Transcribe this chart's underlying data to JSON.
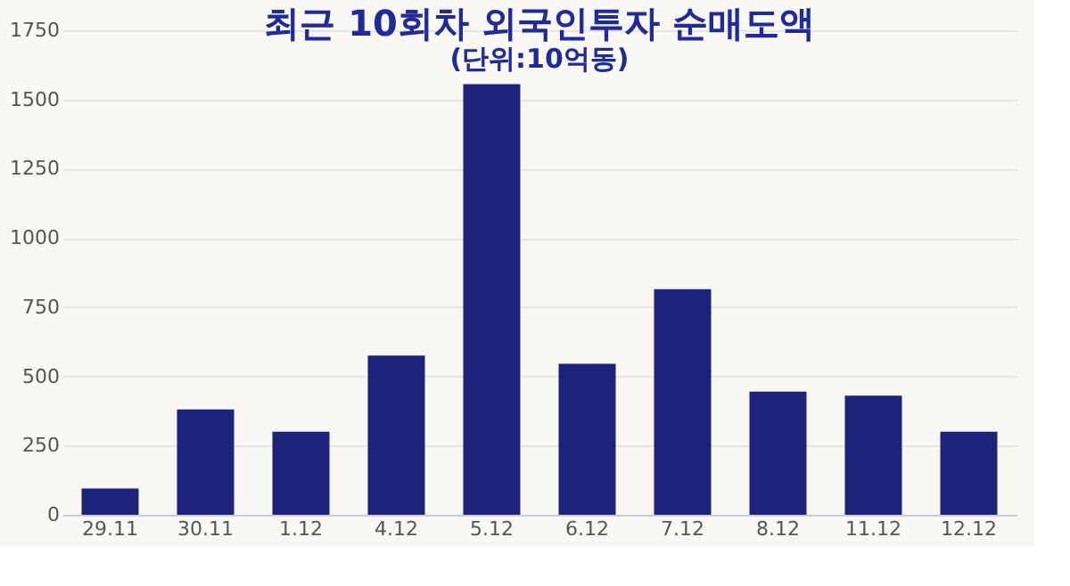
{
  "chart_data": {
    "type": "bar",
    "title": "최근 10회차 외국인투자 순매도액",
    "subtitle": "(단위:10억동)",
    "categories": [
      "29.11",
      "30.11",
      "1.12",
      "4.12",
      "5.12",
      "6.12",
      "7.12",
      "8.12",
      "11.12",
      "12.12"
    ],
    "values": [
      95,
      380,
      300,
      575,
      1555,
      545,
      815,
      445,
      430,
      300
    ],
    "color": "#1b237a",
    "ylim": [
      0,
      1750
    ],
    "yticks": [
      0,
      250,
      500,
      750,
      1000,
      1250,
      1500,
      1750
    ],
    "grid": "y"
  }
}
